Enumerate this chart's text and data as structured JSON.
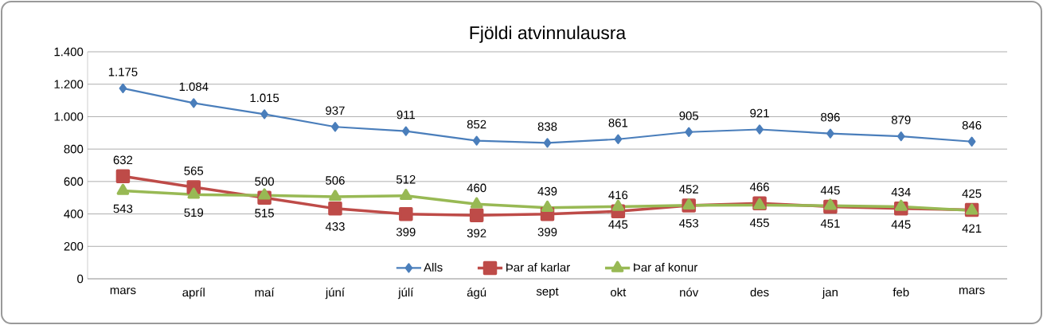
{
  "chart_data": {
    "type": "line",
    "title": "Fjöldi atvinnulausra",
    "categories": [
      "mars",
      "apríl",
      "maí",
      "júní",
      "júlí",
      "ágú",
      "sept",
      "okt",
      "nóv",
      "des",
      "jan",
      "feb",
      "mars"
    ],
    "ylim": [
      0,
      1400
    ],
    "yticks": [
      0,
      200,
      400,
      600,
      800,
      {
        "value": 1000,
        "label": "1.000"
      },
      {
        "value": 1200,
        "label": "1.200"
      },
      {
        "value": 1400,
        "label": "1.400"
      }
    ],
    "grid": "y",
    "legend": "bottom",
    "series": [
      {
        "name": "Alls",
        "color": "#4a7ebb",
        "marker": "diamond",
        "values": [
          1175,
          1084,
          1015,
          937,
          911,
          852,
          838,
          861,
          905,
          921,
          896,
          879,
          846
        ],
        "value_labels": [
          "1.175",
          "1.084",
          "1.015",
          "937",
          "911",
          "852",
          "838",
          "861",
          "905",
          "921",
          "896",
          "879",
          "846"
        ]
      },
      {
        "name": "Þar af karlar",
        "color": "#be4b48",
        "marker": "square",
        "values": [
          632,
          565,
          500,
          433,
          399,
          392,
          399,
          416,
          452,
          466,
          445,
          434,
          425
        ],
        "value_labels": [
          "632",
          "565",
          "500",
          "433",
          "399",
          "392",
          "399",
          "416",
          "452",
          "466",
          "445",
          "434",
          "425"
        ]
      },
      {
        "name": "Þar af konur",
        "color": "#98b954",
        "marker": "triangle",
        "values": [
          543,
          519,
          515,
          506,
          512,
          460,
          439,
          445,
          453,
          455,
          451,
          445,
          421
        ],
        "value_labels": [
          "543",
          "519",
          "515",
          "506",
          "512",
          "460",
          "439",
          "445",
          "453",
          "455",
          "451",
          "445",
          "421"
        ]
      }
    ]
  }
}
